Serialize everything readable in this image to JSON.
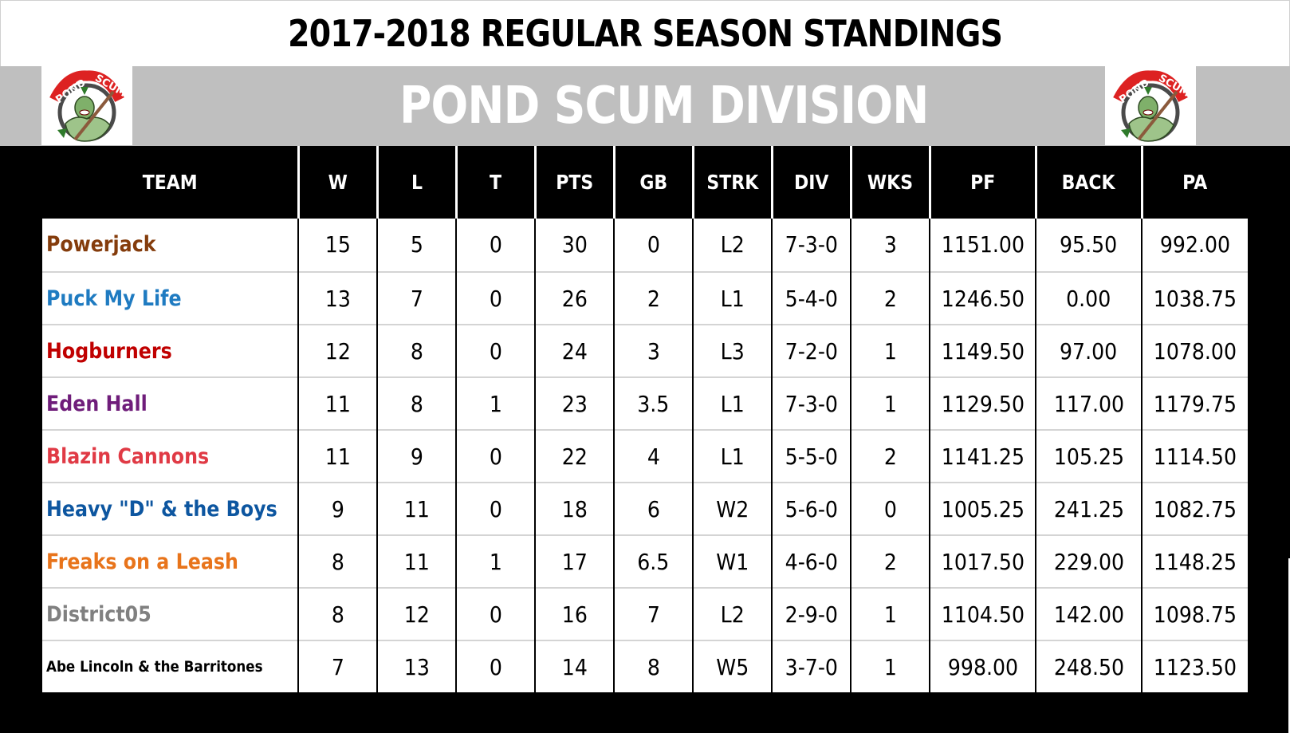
{
  "title": "2017-2018 REGULAR SEASON STANDINGS",
  "division": "POND SCUM DIVISION",
  "logo": {
    "text": "POND SCUM",
    "icon": "pond-scum-monster-logo"
  },
  "colors": {
    "banner": "#bfbfbf",
    "header_bg": "#000000",
    "header_text": "#ffffff",
    "row_bg": "#ffffff",
    "row_divider": "#d4d4d4"
  },
  "columns": [
    "TEAM",
    "W",
    "L",
    "T",
    "PTS",
    "GB",
    "STRK",
    "DIV",
    "WKS",
    "PF",
    "BACK",
    "PA"
  ],
  "rows": [
    {
      "team": "Powerjack",
      "color": "#843c0c",
      "w": "15",
      "l": "5",
      "t": "0",
      "pts": "30",
      "gb": "0",
      "strk": "L2",
      "div": "7-3-0",
      "wks": "3",
      "pf": "1151.00",
      "back": "95.50",
      "pa": "992.00"
    },
    {
      "team": "Puck My Life",
      "color": "#1f7bc1",
      "w": "13",
      "l": "7",
      "t": "0",
      "pts": "26",
      "gb": "2",
      "strk": "L1",
      "div": "5-4-0",
      "wks": "2",
      "pf": "1246.50",
      "back": "0.00",
      "pa": "1038.75"
    },
    {
      "team": "Hogburners",
      "color": "#c00000",
      "w": "12",
      "l": "8",
      "t": "0",
      "pts": "24",
      "gb": "3",
      "strk": "L3",
      "div": "7-2-0",
      "wks": "1",
      "pf": "1149.50",
      "back": "97.00",
      "pa": "1078.00"
    },
    {
      "team": "Eden Hall",
      "color": "#6f1d7a",
      "w": "11",
      "l": "8",
      "t": "1",
      "pts": "23",
      "gb": "3.5",
      "strk": "L1",
      "div": "7-3-0",
      "wks": "1",
      "pf": "1129.50",
      "back": "117.00",
      "pa": "1179.75"
    },
    {
      "team": "Blazin Cannons",
      "color": "#e03a45",
      "w": "11",
      "l": "9",
      "t": "0",
      "pts": "22",
      "gb": "4",
      "strk": "L1",
      "div": "5-5-0",
      "wks": "2",
      "pf": "1141.25",
      "back": "105.25",
      "pa": "1114.50"
    },
    {
      "team": "Heavy \"D\" & the Boys",
      "color": "#0d56a0",
      "w": "9",
      "l": "11",
      "t": "0",
      "pts": "18",
      "gb": "6",
      "strk": "W2",
      "div": "5-6-0",
      "wks": "0",
      "pf": "1005.25",
      "back": "241.25",
      "pa": "1082.75"
    },
    {
      "team": "Freaks on a Leash",
      "color": "#e8741b",
      "w": "8",
      "l": "11",
      "t": "1",
      "pts": "17",
      "gb": "6.5",
      "strk": "W1",
      "div": "4-6-0",
      "wks": "2",
      "pf": "1017.50",
      "back": "229.00",
      "pa": "1148.25"
    },
    {
      "team": "District05",
      "color": "#808080",
      "w": "8",
      "l": "12",
      "t": "0",
      "pts": "16",
      "gb": "7",
      "strk": "L2",
      "div": "2-9-0",
      "wks": "1",
      "pf": "1104.50",
      "back": "142.00",
      "pa": "1098.75"
    },
    {
      "team": "Abe Lincoln & the Barritones",
      "color": "#000000",
      "w": "7",
      "l": "13",
      "t": "0",
      "pts": "14",
      "gb": "8",
      "strk": "W5",
      "div": "3-7-0",
      "wks": "1",
      "pf": "998.00",
      "back": "248.50",
      "pa": "1123.50"
    }
  ]
}
